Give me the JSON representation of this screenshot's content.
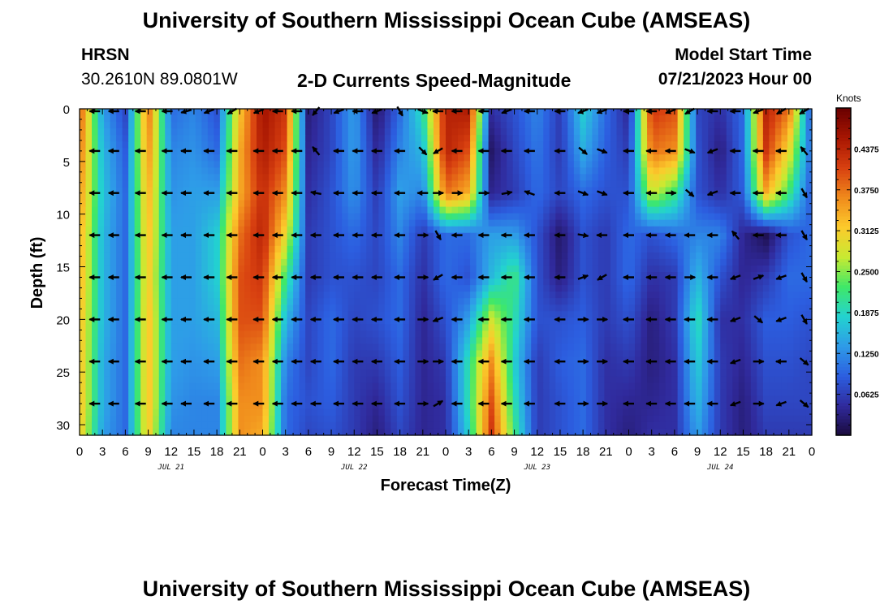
{
  "header": {
    "title": "University of Southern Mississippi Ocean Cube (AMSEAS)",
    "station": "HRSN",
    "coordinates": "30.2610N  89.0801W",
    "chart_title": "2-D Currents Speed-Magnitude",
    "model_start_label": "Model Start Time",
    "model_start_value": "07/21/2023 Hour 00"
  },
  "footer": {
    "title": "University of Southern Mississippi Ocean Cube (AMSEAS)"
  },
  "chart_data": {
    "type": "heatmap",
    "title": "2-D Currents Speed-Magnitude",
    "xlabel": "Forecast Time(Z)",
    "ylabel": "Depth (ft)",
    "xlim": [
      0,
      96
    ],
    "ylim": [
      31,
      0
    ],
    "x_tick_labels": [
      "0",
      "3",
      "6",
      "9",
      "12",
      "15",
      "18",
      "21",
      "0",
      "3",
      "6",
      "9",
      "12",
      "15",
      "18",
      "21",
      "0",
      "3",
      "6",
      "9",
      "12",
      "15",
      "18",
      "21",
      "0",
      "3",
      "6",
      "9",
      "12",
      "15",
      "18",
      "21",
      "0"
    ],
    "date_labels": [
      "JUL 21",
      "JUL 22",
      "JUL 23",
      "JUL 24"
    ],
    "y_ticks": [
      0,
      5,
      10,
      15,
      20,
      25,
      30
    ],
    "y_tick_labels": [
      "0",
      "5",
      "10",
      "15",
      "20",
      "25",
      "30"
    ],
    "colorbar": {
      "unit": "Knots",
      "range": [
        0,
        0.5
      ],
      "tick_labels": [
        "0.0625",
        "0.1250",
        "0.1875",
        "0.2500",
        "0.3125",
        "0.3750",
        "0.4375"
      ],
      "colors": [
        "#1a0a3c",
        "#302a9c",
        "#2c5ee0",
        "#2e9be8",
        "#23d2d0",
        "#3fe868",
        "#c8ea32",
        "#fccb2c",
        "#f08a1c",
        "#d84010",
        "#a81602",
        "#6a0000"
      ]
    },
    "depth_rows": [
      0,
      4,
      8,
      12,
      16,
      20,
      24,
      28,
      31
    ],
    "hour_cols": [
      0,
      3,
      6,
      9,
      12,
      15,
      18,
      21,
      24,
      27,
      30,
      33,
      36,
      39,
      42,
      45,
      48,
      51,
      54,
      57,
      60,
      63,
      66,
      69,
      72,
      75,
      78,
      81,
      84,
      87,
      90,
      93,
      96
    ],
    "speed_knots": [
      [
        0.4,
        0.14,
        0.07,
        0.38,
        0.1,
        0.12,
        0.08,
        0.32,
        0.46,
        0.42,
        0.03,
        0.07,
        0.14,
        0.02,
        0.1,
        0.2,
        0.44,
        0.45,
        0.05,
        0.08,
        0.12,
        0.06,
        0.18,
        0.1,
        0.04,
        0.42,
        0.4,
        0.07,
        0.05,
        0.1,
        0.44,
        0.38,
        0.07
      ],
      [
        0.38,
        0.16,
        0.09,
        0.36,
        0.12,
        0.13,
        0.1,
        0.34,
        0.45,
        0.4,
        0.04,
        0.07,
        0.14,
        0.04,
        0.12,
        0.16,
        0.44,
        0.4,
        0.02,
        0.07,
        0.11,
        0.06,
        0.15,
        0.09,
        0.06,
        0.38,
        0.36,
        0.08,
        0.03,
        0.1,
        0.42,
        0.3,
        0.09
      ],
      [
        0.36,
        0.17,
        0.1,
        0.34,
        0.13,
        0.14,
        0.14,
        0.34,
        0.43,
        0.36,
        0.05,
        0.08,
        0.13,
        0.06,
        0.14,
        0.12,
        0.38,
        0.34,
        0.04,
        0.06,
        0.1,
        0.07,
        0.1,
        0.08,
        0.08,
        0.28,
        0.22,
        0.08,
        0.05,
        0.09,
        0.34,
        0.22,
        0.08
      ],
      [
        0.34,
        0.16,
        0.1,
        0.33,
        0.14,
        0.14,
        0.18,
        0.38,
        0.44,
        0.3,
        0.06,
        0.08,
        0.1,
        0.07,
        0.12,
        0.06,
        0.1,
        0.1,
        0.14,
        0.14,
        0.08,
        0.02,
        0.08,
        0.06,
        0.1,
        0.08,
        0.1,
        0.12,
        0.12,
        0.04,
        0.01,
        0.08,
        0.1
      ],
      [
        0.34,
        0.16,
        0.1,
        0.32,
        0.14,
        0.14,
        0.18,
        0.4,
        0.42,
        0.22,
        0.06,
        0.08,
        0.08,
        0.07,
        0.1,
        0.05,
        0.1,
        0.08,
        0.16,
        0.22,
        0.08,
        0.03,
        0.08,
        0.06,
        0.1,
        0.05,
        0.06,
        0.16,
        0.08,
        0.04,
        0.06,
        0.1,
        0.1
      ],
      [
        0.33,
        0.16,
        0.1,
        0.33,
        0.14,
        0.14,
        0.16,
        0.4,
        0.4,
        0.16,
        0.07,
        0.1,
        0.07,
        0.08,
        0.1,
        0.04,
        0.08,
        0.14,
        0.28,
        0.2,
        0.08,
        0.08,
        0.09,
        0.06,
        0.08,
        0.03,
        0.06,
        0.2,
        0.05,
        0.05,
        0.09,
        0.09,
        0.08
      ],
      [
        0.33,
        0.15,
        0.1,
        0.33,
        0.14,
        0.13,
        0.14,
        0.38,
        0.36,
        0.12,
        0.07,
        0.1,
        0.06,
        0.06,
        0.09,
        0.04,
        0.06,
        0.2,
        0.36,
        0.18,
        0.06,
        0.09,
        0.1,
        0.05,
        0.06,
        0.03,
        0.05,
        0.18,
        0.06,
        0.04,
        0.08,
        0.08,
        0.07
      ],
      [
        0.33,
        0.15,
        0.1,
        0.33,
        0.13,
        0.12,
        0.12,
        0.36,
        0.36,
        0.1,
        0.08,
        0.09,
        0.06,
        0.04,
        0.08,
        0.04,
        0.05,
        0.2,
        0.4,
        0.2,
        0.06,
        0.08,
        0.1,
        0.05,
        0.04,
        0.04,
        0.05,
        0.16,
        0.06,
        0.03,
        0.07,
        0.07,
        0.07
      ],
      [
        0.32,
        0.14,
        0.1,
        0.32,
        0.12,
        0.12,
        0.12,
        0.36,
        0.34,
        0.1,
        0.07,
        0.08,
        0.06,
        0.03,
        0.07,
        0.04,
        0.05,
        0.18,
        0.42,
        0.22,
        0.06,
        0.08,
        0.1,
        0.05,
        0.03,
        0.05,
        0.05,
        0.14,
        0.06,
        0.03,
        0.06,
        0.06,
        0.06
      ]
    ],
    "vector_depths": [
      0,
      4,
      8,
      12,
      16,
      20,
      24,
      28
    ],
    "vector_hours": [
      2,
      4.5,
      8,
      11.5,
      14,
      17,
      20,
      23.5,
      26,
      28.5,
      31,
      34,
      36.5,
      39,
      42,
      45,
      47,
      49.5,
      53,
      56,
      59,
      63,
      66,
      68.5,
      72,
      75,
      77.5,
      80,
      83,
      86,
      89,
      92,
      95
    ],
    "vector_directions_deg": [
      [
        180,
        180,
        180,
        180,
        195,
        200,
        210,
        200,
        180,
        180,
        230,
        200,
        180,
        200,
        300,
        340,
        180,
        180,
        180,
        200,
        180,
        180,
        200,
        200,
        180,
        180,
        200,
        210,
        180,
        180,
        200,
        210,
        210
      ],
      [
        180,
        180,
        180,
        180,
        180,
        180,
        180,
        180,
        180,
        180,
        130,
        180,
        180,
        180,
        180,
        315,
        210,
        180,
        180,
        180,
        180,
        180,
        320,
        340,
        180,
        180,
        180,
        340,
        200,
        180,
        180,
        180,
        130
      ],
      [
        180,
        180,
        180,
        180,
        180,
        180,
        180,
        180,
        180,
        180,
        170,
        180,
        180,
        180,
        180,
        180,
        0,
        0,
        0,
        10,
        160,
        180,
        340,
        340,
        180,
        180,
        0,
        320,
        200,
        180,
        180,
        180,
        300
      ],
      [
        180,
        180,
        180,
        180,
        180,
        180,
        180,
        180,
        180,
        180,
        180,
        180,
        180,
        180,
        180,
        0,
        300,
        180,
        180,
        180,
        180,
        180,
        350,
        180,
        180,
        180,
        180,
        180,
        180,
        130,
        180,
        180,
        300
      ],
      [
        180,
        180,
        180,
        180,
        180,
        180,
        180,
        180,
        180,
        180,
        180,
        180,
        180,
        180,
        180,
        0,
        210,
        180,
        180,
        180,
        180,
        180,
        20,
        210,
        180,
        180,
        180,
        0,
        180,
        200,
        20,
        200,
        300
      ],
      [
        180,
        180,
        180,
        180,
        180,
        180,
        180,
        180,
        180,
        180,
        180,
        180,
        180,
        180,
        180,
        0,
        200,
        180,
        180,
        180,
        180,
        180,
        0,
        0,
        180,
        180,
        180,
        180,
        180,
        200,
        320,
        200,
        300
      ],
      [
        180,
        180,
        180,
        180,
        180,
        180,
        180,
        180,
        180,
        180,
        180,
        180,
        180,
        180,
        180,
        0,
        0,
        180,
        180,
        180,
        180,
        180,
        0,
        0,
        180,
        180,
        180,
        180,
        180,
        200,
        0,
        180,
        320
      ],
      [
        180,
        180,
        180,
        180,
        180,
        180,
        180,
        180,
        180,
        180,
        180,
        180,
        180,
        180,
        180,
        0,
        30,
        180,
        180,
        180,
        180,
        180,
        0,
        0,
        180,
        180,
        180,
        180,
        180,
        200,
        0,
        200,
        320
      ]
    ]
  }
}
